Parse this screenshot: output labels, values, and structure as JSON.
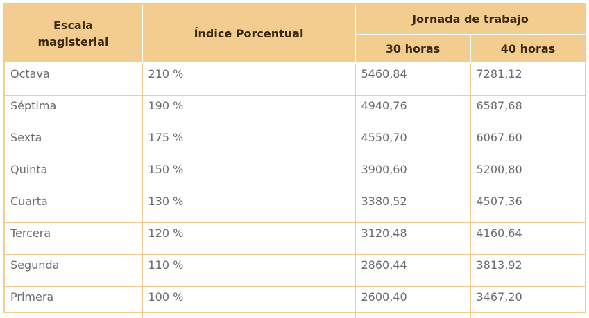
{
  "table": {
    "headers": {
      "scale": "Escala magisterial",
      "index": "Índice Porcentual",
      "workday": "Jornada de trabajo",
      "h30": "30 horas",
      "h40": "40 horas"
    },
    "rows": [
      {
        "scale": "Octava",
        "index": "210 %",
        "h30": "5460,84",
        "h40": "7281,12"
      },
      {
        "scale": "Séptima",
        "index": "190 %",
        "h30": "4940,76",
        "h40": "6587,68"
      },
      {
        "scale": "Sexta",
        "index": "175 %",
        "h30": "4550,70",
        "h40": "6067.60"
      },
      {
        "scale": "Quinta",
        "index": "150 %",
        "h30": "3900,60",
        "h40": "5200,80"
      },
      {
        "scale": "Cuarta",
        "index": "130 %",
        "h30": "3380,52",
        "h40": "4507,36"
      },
      {
        "scale": "Tercera",
        "index": "120 %",
        "h30": "3120,48",
        "h40": "4160,64"
      },
      {
        "scale": "Segunda",
        "index": "110 %",
        "h30": "2860,44",
        "h40": "3813,92"
      },
      {
        "scale": "Primera",
        "index": "100 %",
        "h30": "2600,40",
        "h40": "3467,20"
      }
    ]
  }
}
